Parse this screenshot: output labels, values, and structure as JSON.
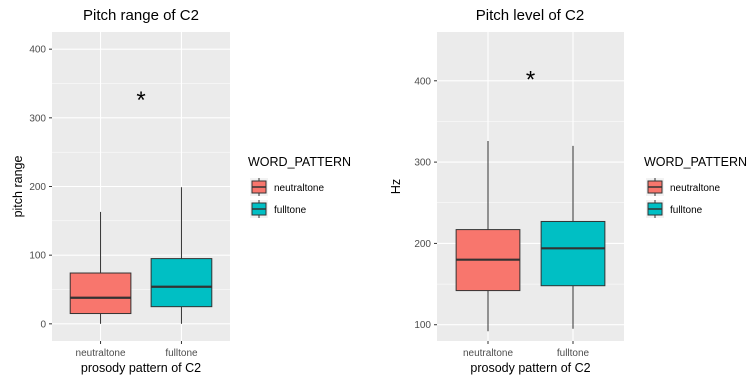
{
  "chart_data": [
    {
      "type": "boxplot",
      "title": "Pitch range of C2",
      "xlabel": "prosody pattern of C2",
      "ylabel": "pitch range",
      "ylim": [
        -25,
        425
      ],
      "yticks": [
        0,
        100,
        200,
        300,
        400
      ],
      "categories": [
        "neutraltone",
        "fulltone"
      ],
      "series": [
        {
          "category": "neutraltone",
          "min": 0,
          "q1": 15,
          "median": 38,
          "q3": 74,
          "max": 163,
          "color": "#F8766D"
        },
        {
          "category": "fulltone",
          "min": 0,
          "q1": 25,
          "median": 54,
          "q3": 95,
          "max": 199,
          "color": "#00BFC4"
        }
      ],
      "annotation": {
        "text": "*",
        "x": 1.5,
        "y": 330
      },
      "legend": {
        "title": "WORD_PATTERN",
        "items": [
          {
            "label": "neutraltone",
            "color": "#F8766D"
          },
          {
            "label": "fulltone",
            "color": "#00BFC4"
          }
        ],
        "position": "right"
      },
      "grid": true,
      "background": "#EBEBEB"
    },
    {
      "type": "boxplot",
      "title": "Pitch level of C2",
      "xlabel": "prosody pattern of C2",
      "ylabel": "Hz",
      "ylim": [
        80,
        460
      ],
      "yticks": [
        100,
        200,
        300,
        400
      ],
      "categories": [
        "neutraltone",
        "fulltone"
      ],
      "series": [
        {
          "category": "neutraltone",
          "min": 92,
          "q1": 142,
          "median": 180,
          "q3": 217,
          "max": 326,
          "color": "#F8766D"
        },
        {
          "category": "fulltone",
          "min": 95,
          "q1": 148,
          "median": 194,
          "q3": 227,
          "max": 320,
          "color": "#00BFC4"
        }
      ],
      "annotation": {
        "text": "*",
        "x": 1.5,
        "y": 405
      },
      "legend": {
        "title": "WORD_PATTERN",
        "items": [
          {
            "label": "neutraltone",
            "color": "#F8766D"
          },
          {
            "label": "fulltone",
            "color": "#00BFC4"
          }
        ],
        "position": "right"
      },
      "grid": true,
      "background": "#EBEBEB"
    }
  ]
}
